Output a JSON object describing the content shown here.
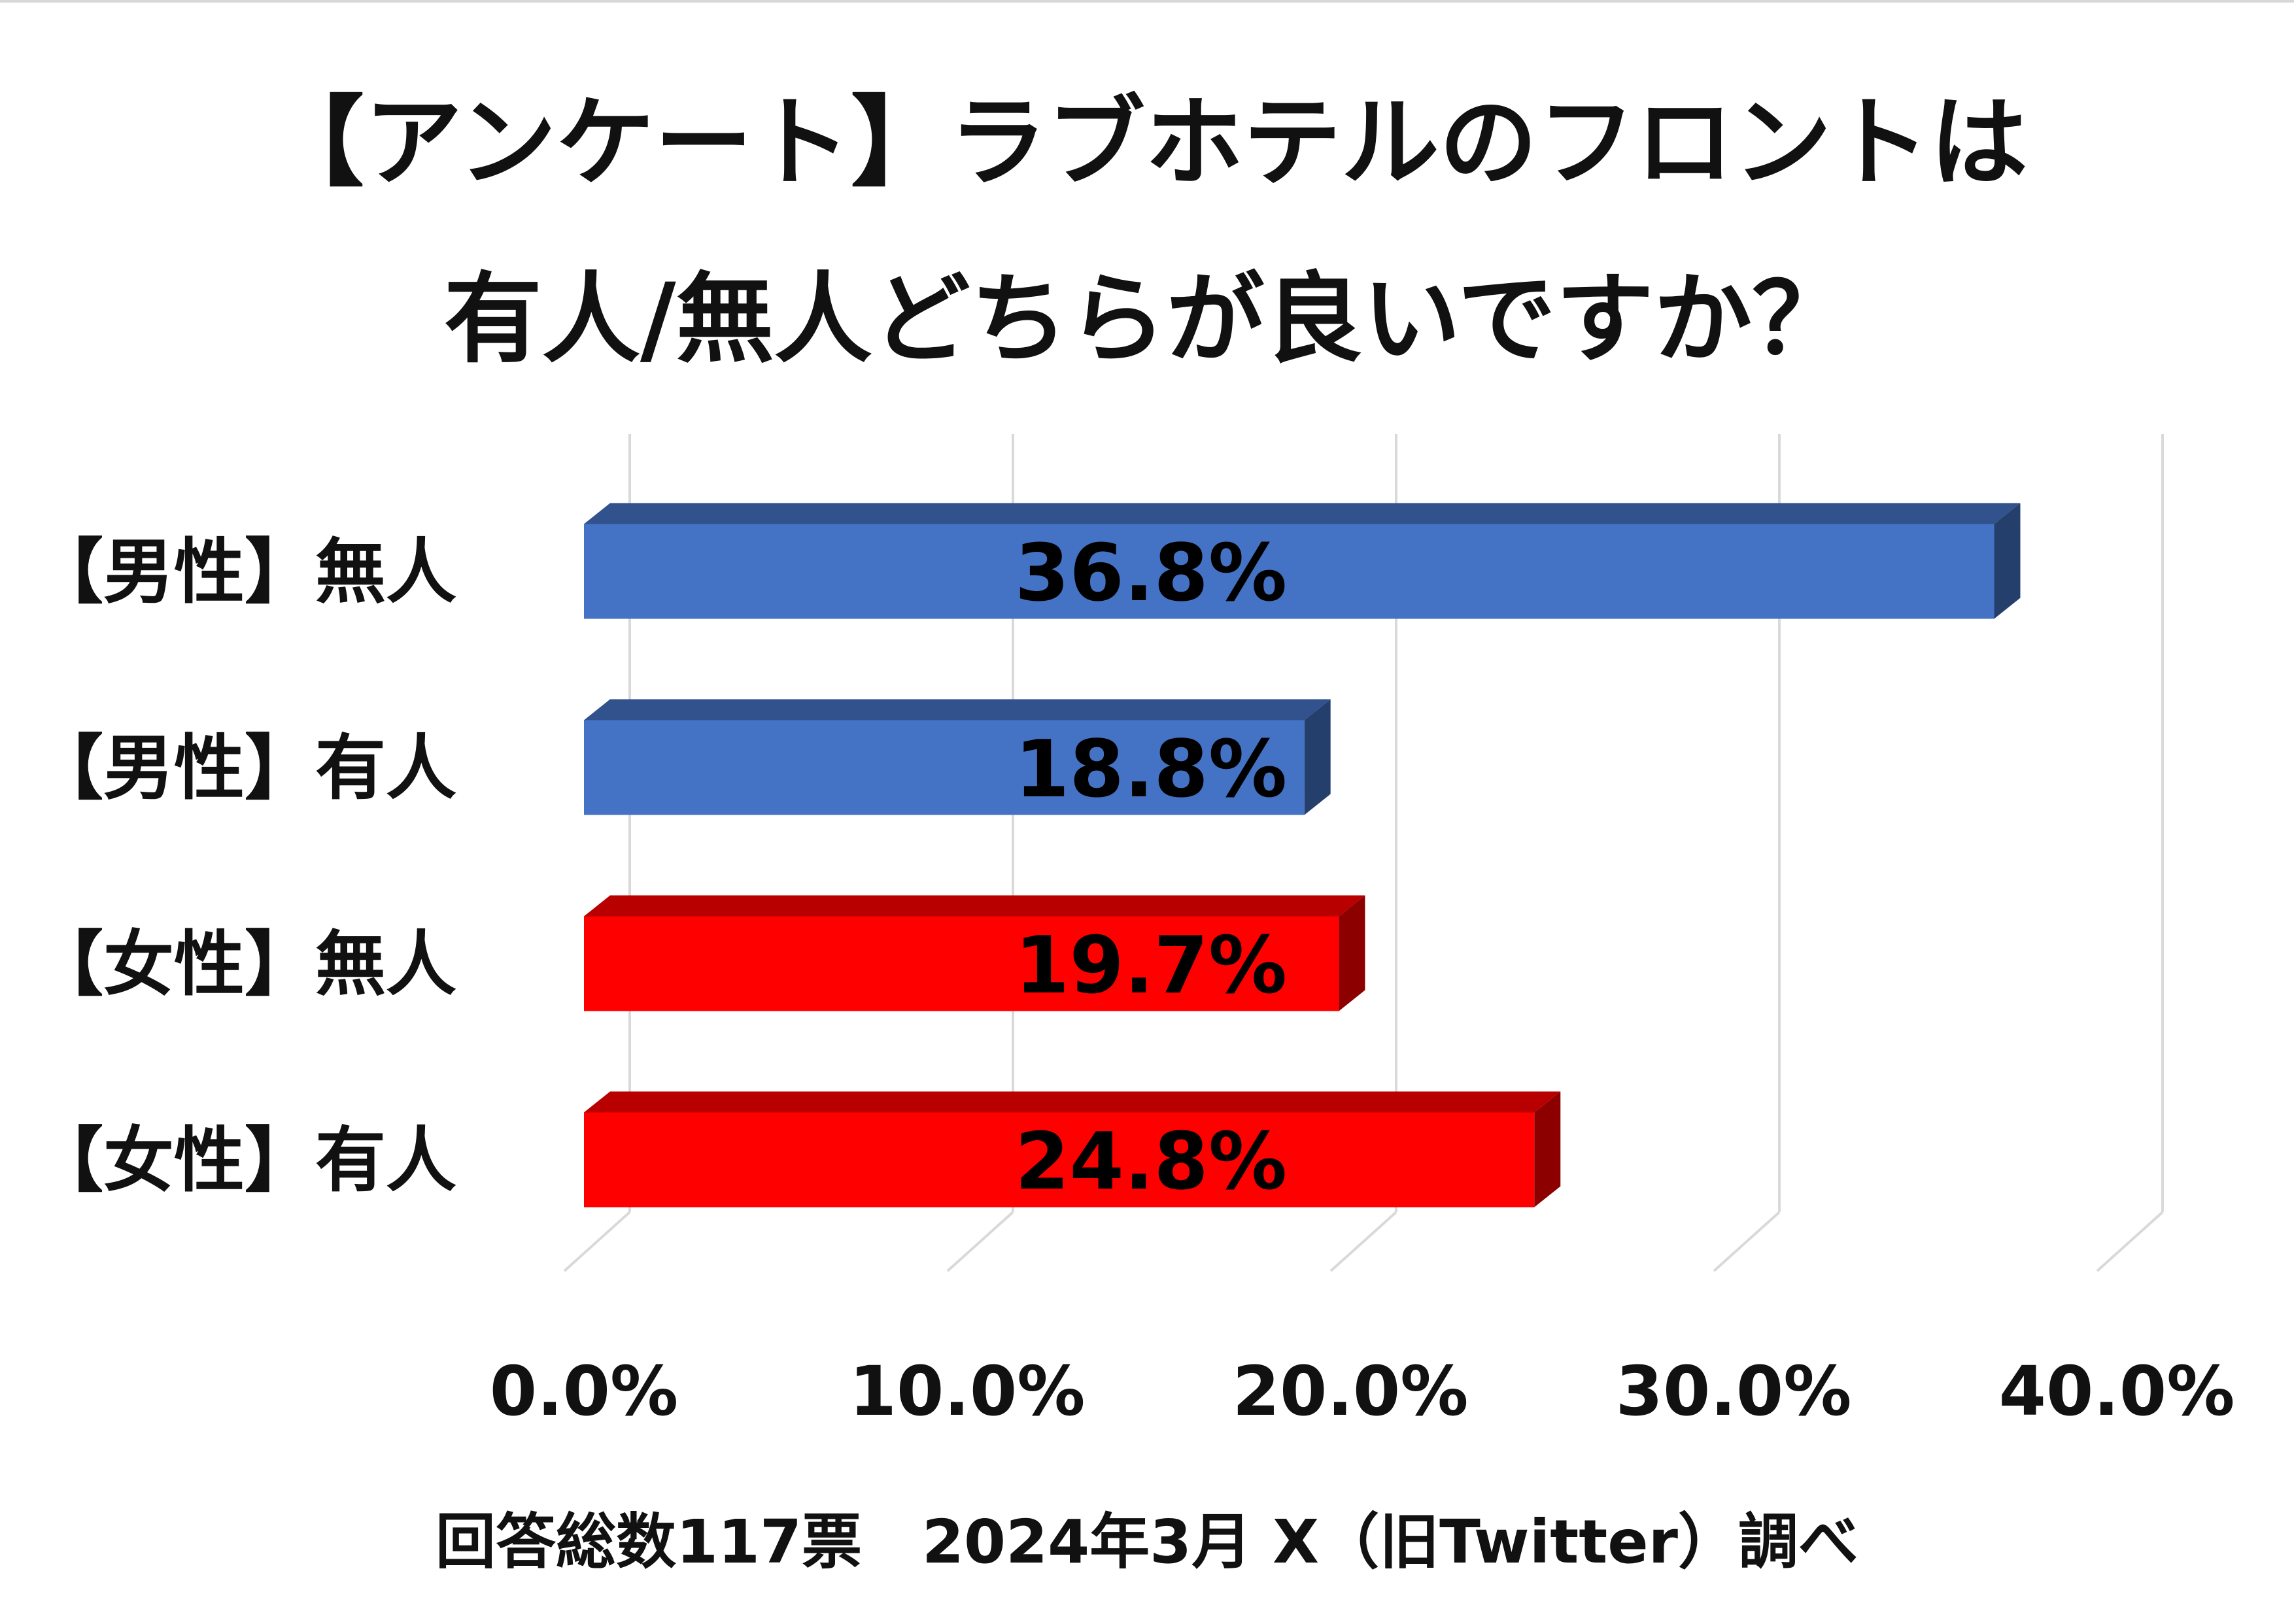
{
  "chart_data": {
    "type": "bar",
    "orientation": "horizontal",
    "title_lines": [
      "【アンケート】ラブホテルのフロントは",
      "有人/無人どちらが良いですか？"
    ],
    "categories": [
      "【男性】無人",
      "【男性】有人",
      "【女性】無人",
      "【女性】有人"
    ],
    "values": [
      36.8,
      18.8,
      19.7,
      24.8
    ],
    "data_labels": [
      "36.8%",
      "18.8%",
      "19.7%",
      "24.8%"
    ],
    "bar_colors": [
      "#4472c4",
      "#4472c4",
      "#ff0000",
      "#ff0000"
    ],
    "xlim": [
      0,
      40
    ],
    "x_ticks": [
      0,
      10,
      20,
      30,
      40
    ],
    "x_tick_labels": [
      "0.0%",
      "10.0%",
      "20.0%",
      "30.0%",
      "40.0%"
    ],
    "grid": true,
    "style": "3d-bar",
    "footnote": "回答総数117票　2024年3月 X（旧Twitter）調べ"
  }
}
